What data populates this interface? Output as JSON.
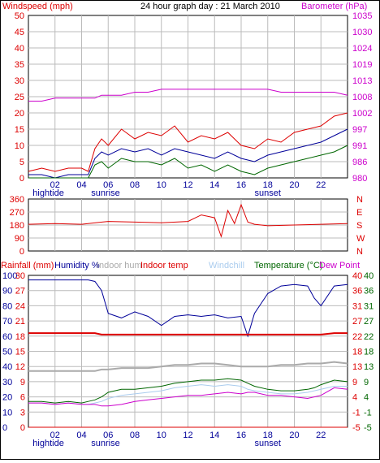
{
  "title": "24 hour graph day : 21 March 2010",
  "hour_ticks": [
    "02",
    "04",
    "06",
    "08",
    "10",
    "12",
    "14",
    "16",
    "18",
    "20",
    "22"
  ],
  "events": {
    "hightide": "hightide",
    "sunrise": "sunrise",
    "sunset": "sunset"
  },
  "colors": {
    "red": "#dd0000",
    "magenta": "#cc00cc",
    "blue": "#000099",
    "green": "#006600",
    "lightblue": "#aaccee",
    "gray": "#aaaaaa",
    "grid": "#bbbbbb"
  },
  "chart_data": [
    {
      "type": "line",
      "panel": "wind-barometer",
      "left_axis_label": "Windspeed (mph)",
      "right_axis_label": "Barometer (hPa)",
      "left_ticks": [
        "0",
        "5",
        "10",
        "15",
        "20",
        "25",
        "30",
        "35",
        "40",
        "45",
        "50"
      ],
      "right_ticks": [
        "980",
        "986",
        "991",
        "997",
        "1002",
        "1008",
        "1013",
        "1019",
        "1024",
        "1030",
        "1035"
      ],
      "ylim_left": [
        0,
        50
      ],
      "ylim_right": [
        980,
        1035
      ],
      "x_hours": [
        0,
        1,
        2,
        3,
        4,
        4.5,
        5,
        5.5,
        6,
        7,
        8,
        9,
        10,
        11,
        12,
        13,
        14,
        15,
        16,
        17,
        18,
        19,
        20,
        21,
        22,
        23,
        24
      ],
      "series": [
        {
          "name": "Barometer",
          "axis": "right",
          "color": "#cc00cc",
          "values": [
            1006,
            1006,
            1007,
            1007,
            1007,
            1007,
            1007,
            1008,
            1008,
            1008,
            1009,
            1009,
            1010,
            1010,
            1010,
            1010,
            1010,
            1010,
            1010,
            1010,
            1010,
            1009,
            1009,
            1009,
            1009,
            1009,
            1008
          ]
        },
        {
          "name": "Gust",
          "axis": "left",
          "color": "#dd0000",
          "values": [
            2,
            3,
            2,
            3,
            3,
            2,
            9,
            12,
            10,
            15,
            12,
            14,
            13,
            16,
            11,
            13,
            12,
            14,
            10,
            9,
            12,
            11,
            14,
            15,
            16,
            19,
            20
          ]
        },
        {
          "name": "Average",
          "axis": "left",
          "color": "#000099",
          "values": [
            1,
            1,
            0,
            1,
            1,
            1,
            6,
            8,
            7,
            9,
            8,
            9,
            7,
            9,
            8,
            7,
            6,
            8,
            6,
            5,
            7,
            8,
            9,
            10,
            11,
            13,
            15
          ]
        },
        {
          "name": "Min",
          "axis": "left",
          "color": "#006600",
          "values": [
            0,
            0,
            0,
            0,
            0,
            0,
            4,
            5,
            3,
            6,
            5,
            5,
            4,
            6,
            3,
            4,
            2,
            4,
            2,
            1,
            3,
            4,
            5,
            6,
            7,
            8,
            10
          ]
        }
      ]
    },
    {
      "type": "line",
      "panel": "wind-direction",
      "left_ticks": [
        "0",
        "90",
        "180",
        "270",
        "360"
      ],
      "right_ticks": [
        "N",
        "W",
        "S",
        "E",
        "N"
      ],
      "ylim": [
        0,
        360
      ],
      "x_hours": [
        0,
        2,
        4,
        6,
        8,
        10,
        12,
        13,
        14,
        14.5,
        15,
        15.5,
        16,
        16.5,
        17,
        18,
        20,
        22,
        24
      ],
      "series": [
        {
          "name": "Wind direction",
          "color": "#dd0000",
          "values": [
            185,
            190,
            185,
            205,
            200,
            195,
            205,
            250,
            230,
            100,
            280,
            190,
            320,
            200,
            185,
            175,
            180,
            185,
            190
          ]
        }
      ]
    },
    {
      "type": "line",
      "panel": "temperature-humidity",
      "legend": [
        "Rainfall (mm)",
        "Humidity %",
        "Indoor hum",
        "Indoor temp",
        "Windchill",
        "Temperature (°C)",
        "Dew Point"
      ],
      "left_ticks_rain": [
        "0",
        "3",
        "6",
        "9",
        "12",
        "15",
        "18",
        "21",
        "24",
        "27",
        "30"
      ],
      "left_ticks_hum": [
        "0",
        "10",
        "20",
        "30",
        "40",
        "50",
        "60",
        "70",
        "80",
        "90",
        "100"
      ],
      "right_ticks_1": [
        "-5",
        "-1",
        "4",
        "9",
        "13",
        "18",
        "22",
        "27",
        "31",
        "36",
        "40"
      ],
      "right_ticks_2": [
        "-5",
        "-1",
        "4",
        "9",
        "13",
        "18",
        "22",
        "27",
        "31",
        "36",
        "40"
      ],
      "ylim_hum": [
        0,
        100
      ],
      "x_hours": [
        0,
        1,
        2,
        3,
        4,
        4.5,
        5,
        5.5,
        6,
        7,
        8,
        9,
        10,
        11,
        12,
        13,
        14,
        15,
        16,
        16.5,
        17,
        18,
        19,
        20,
        21,
        21.5,
        22,
        23,
        24
      ],
      "series": [
        {
          "name": "Humidity %",
          "color": "#000099",
          "values": [
            97,
            97,
            97,
            97,
            97,
            97,
            96,
            90,
            75,
            72,
            76,
            73,
            67,
            73,
            74,
            73,
            74,
            72,
            73,
            60,
            75,
            88,
            93,
            94,
            93,
            85,
            80,
            93,
            94
          ]
        },
        {
          "name": "Indoor temp",
          "color": "#dd0000",
          "values": [
            62,
            62,
            62,
            62,
            62,
            62,
            62,
            61,
            61,
            61,
            61,
            61,
            61,
            61,
            61,
            61,
            61,
            61,
            61,
            61,
            61,
            61,
            61,
            61,
            61,
            61,
            61,
            62,
            62
          ]
        },
        {
          "name": "Indoor hum",
          "color": "#aaaaaa",
          "values": [
            37,
            37,
            37,
            37,
            37,
            37,
            37,
            38,
            38,
            39,
            39,
            39,
            40,
            41,
            41,
            42,
            42,
            41,
            40,
            40,
            40,
            40,
            41,
            41,
            42,
            42,
            42,
            43,
            42
          ]
        },
        {
          "name": "Temperature (°C)",
          "color": "#006600",
          "values": [
            17,
            17,
            16,
            17,
            16,
            17,
            18,
            20,
            23,
            25,
            25,
            26,
            27,
            29,
            30,
            31,
            31,
            32,
            31,
            29,
            27,
            25,
            24,
            24,
            25,
            26,
            28,
            31,
            30
          ]
        },
        {
          "name": "Windchill",
          "color": "#aaccee",
          "values": [
            16,
            16,
            15,
            16,
            15,
            15,
            16,
            17,
            19,
            21,
            22,
            23,
            24,
            26,
            27,
            28,
            27,
            28,
            27,
            25,
            24,
            23,
            22,
            22,
            23,
            24,
            25,
            27,
            27
          ]
        },
        {
          "name": "Dew Point",
          "color": "#cc00cc",
          "values": [
            16,
            16,
            15,
            16,
            15,
            15,
            15,
            14,
            14,
            15,
            17,
            18,
            19,
            20,
            21,
            21,
            22,
            23,
            22,
            23,
            23,
            21,
            21,
            20,
            19,
            20,
            21,
            26,
            25
          ]
        },
        {
          "name": "Rainfall (mm)",
          "color": "#dd0000",
          "values": [
            0,
            0,
            0,
            0,
            0,
            0,
            0,
            0,
            0,
            0,
            0,
            0,
            0,
            0,
            0,
            0,
            0,
            0,
            0,
            0,
            0,
            0,
            0,
            0,
            0,
            0,
            0,
            0,
            0
          ]
        }
      ]
    }
  ]
}
